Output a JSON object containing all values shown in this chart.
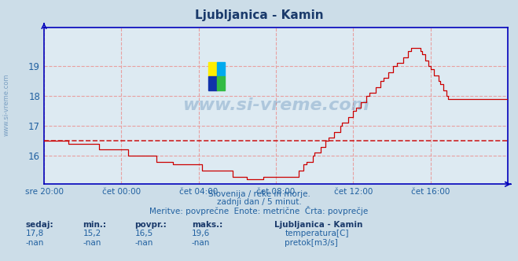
{
  "title": "Ljubljanica - Kamin",
  "title_color": "#1a3a6b",
  "bg_color": "#ccdde8",
  "plot_bg_color": "#ddeaf2",
  "grid_color": "#e8a0a0",
  "axis_color": "#0000bb",
  "line_color": "#cc0000",
  "avg_line_color": "#cc0000",
  "avg_value": 16.5,
  "ylim_bottom": 15.05,
  "ylim_top": 20.3,
  "yticks": [
    16,
    17,
    18,
    19
  ],
  "tick_label_color": "#2060a0",
  "watermark_text": "www.si-vreme.com",
  "watermark_color": "#4477aa",
  "watermark_alpha": 0.3,
  "footer_lines": [
    "Slovenija / reke in morje.",
    "zadnji dan / 5 minut.",
    "Meritve: povprečne  Enote: metrične  Črta: povprečje"
  ],
  "footer_color": "#2060a0",
  "legend_title": "Ljubljanica - Kamin",
  "legend_title_color": "#1a3a6b",
  "legend_items": [
    {
      "label": "temperatura[C]",
      "color": "#cc0000"
    },
    {
      "label": "pretok[m3/s]",
      "color": "#00aa00"
    }
  ],
  "stats_headers": [
    "sedaj:",
    "min.:",
    "povpr.:",
    "maks.:"
  ],
  "stats_temp": [
    "17,8",
    "15,2",
    "16,5",
    "19,6"
  ],
  "stats_flow": [
    "-nan",
    "-nan",
    "-nan",
    "-nan"
  ],
  "stats_color": "#2060a0",
  "stats_header_color": "#1a3a6b",
  "xtick_labels": [
    "sre 20:00",
    "čet 00:00",
    "čet 04:00",
    "čet 08:00",
    "čet 12:00",
    "čet 16:00"
  ],
  "xtick_positions": [
    0,
    48,
    96,
    144,
    192,
    240
  ],
  "n_points": 289
}
